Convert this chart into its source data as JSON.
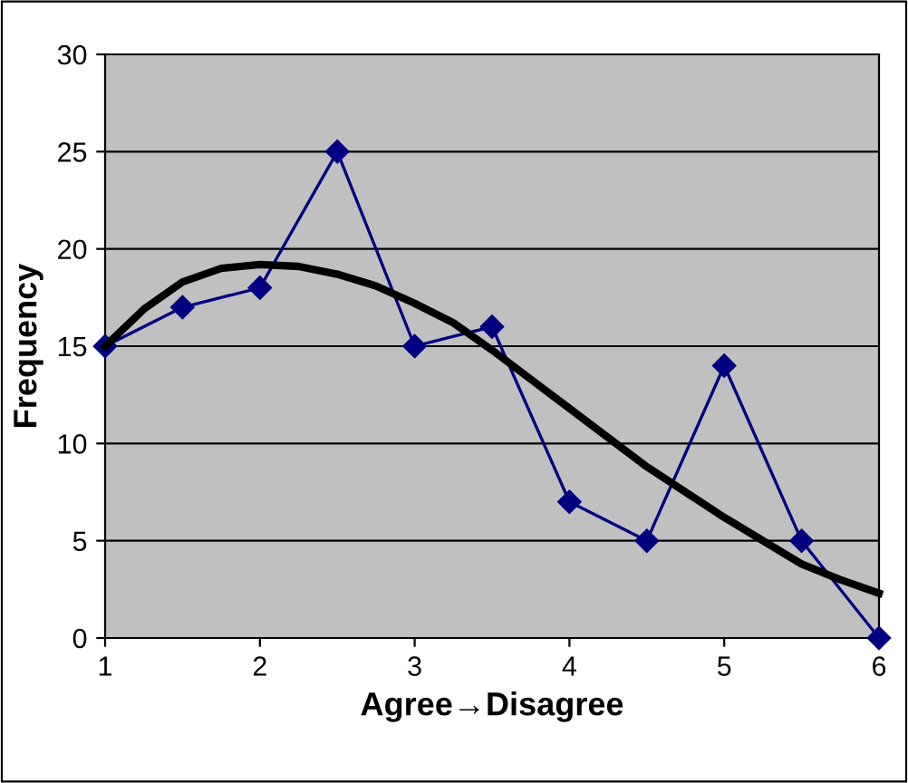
{
  "chart_data": {
    "type": "line",
    "xlabel": "Agree→Disagree",
    "ylabel": "Frequency",
    "xlim": [
      1,
      6
    ],
    "xticks": [
      1,
      2,
      3,
      4,
      5,
      6
    ],
    "ylim": [
      0,
      30
    ],
    "yticks": [
      0,
      5,
      10,
      15,
      20,
      25,
      30
    ],
    "grid": "y",
    "marker": "diamond",
    "series": [
      {
        "color": "#000080",
        "x": [
          1,
          1.5,
          2,
          2.5,
          3,
          3.5,
          4,
          4.5,
          5,
          5.5,
          6
        ],
        "values": [
          15,
          17,
          18,
          25,
          15,
          16,
          7,
          5,
          14,
          5,
          0
        ]
      },
      {
        "color": "#000000",
        "marker": "none",
        "x": [
          1,
          1.25,
          1.5,
          1.75,
          2,
          2.25,
          2.5,
          2.75,
          3,
          3.25,
          3.5,
          3.75,
          4,
          4.25,
          4.5,
          4.75,
          5,
          5.25,
          5.5,
          5.75,
          6
        ],
        "values": [
          15,
          16.9,
          18.3,
          19,
          19.2,
          19.1,
          18.7,
          18.1,
          17.2,
          16.2,
          14.8,
          13.3,
          11.8,
          10.3,
          8.8,
          7.5,
          6.2,
          5,
          3.8,
          3,
          2.3
        ]
      }
    ]
  }
}
